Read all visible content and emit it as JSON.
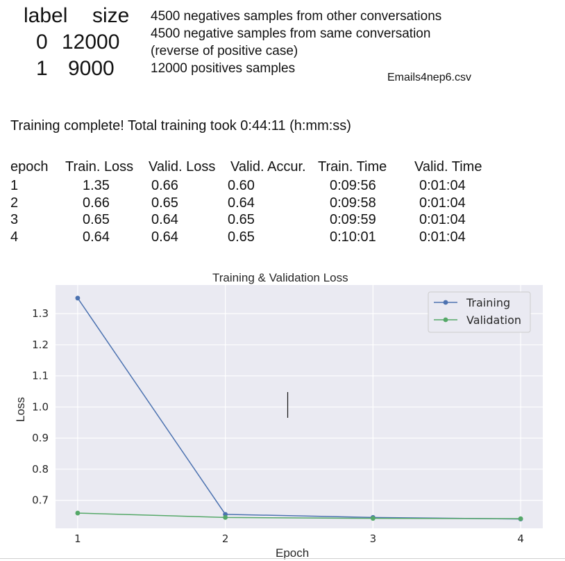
{
  "summary": {
    "header": [
      "label",
      "size"
    ],
    "rows": [
      [
        "0",
        "12000"
      ],
      [
        "1",
        "9000"
      ]
    ]
  },
  "notes": [
    "4500 negatives samples from other conversations",
    "4500 negative samples from same conversation",
    "(reverse of positive case)",
    "12000 positives samples"
  ],
  "filename": "Emails4nep6.csv",
  "training_message": "Training complete! Total training took 0:44:11 (h:mm:ss)",
  "stats_table": {
    "headers": [
      "epoch",
      "Train. Loss",
      "Valid. Loss",
      "Valid. Accur.",
      "Train. Time",
      "Valid. Time"
    ],
    "rows": [
      [
        "1",
        "1.35",
        "0.66",
        "0.60",
        "0:09:56",
        "0:01:04"
      ],
      [
        "2",
        "0.66",
        "0.65",
        "0.64",
        "0:09:58",
        "0:01:04"
      ],
      [
        "3",
        "0.65",
        "0.64",
        "0.65",
        "0:09:59",
        "0:01:04"
      ],
      [
        "4",
        "0.64",
        "0.64",
        "0.65",
        "0:10:01",
        "0:01:04"
      ]
    ]
  },
  "chart_data": {
    "type": "line",
    "title": "Training & Validation Loss",
    "xlabel": "Epoch",
    "ylabel": "Loss",
    "x": [
      1,
      2,
      3,
      4
    ],
    "xticks": [
      "1",
      "2",
      "3",
      "4"
    ],
    "yticks": [
      "0.7",
      "0.8",
      "0.9",
      "1.0",
      "1.1",
      "1.2",
      "1.3"
    ],
    "xlim": [
      0.85,
      4.15
    ],
    "ylim": [
      0.61,
      1.392
    ],
    "grid": true,
    "legend": "top-right",
    "series": [
      {
        "name": "Training",
        "values": [
          1.35,
          0.655,
          0.645,
          0.64
        ],
        "color": "#4c72b0"
      },
      {
        "name": "Validation",
        "values": [
          0.659,
          0.645,
          0.642,
          0.641
        ],
        "color": "#55a868"
      }
    ]
  }
}
